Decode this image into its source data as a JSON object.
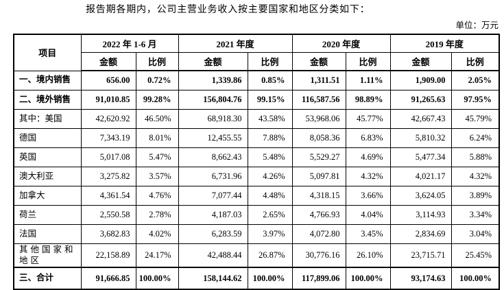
{
  "intro_text": "报告期各期内，公司主营业务收入按主要国家和地区分类如下：",
  "unit_label": "单位：万元",
  "table": {
    "item_header": "项目",
    "amount_header": "金额",
    "ratio_header": "比例",
    "periods": [
      "2022 年 1-6 月",
      "2021 年度",
      "2020 年度",
      "2019 年度"
    ],
    "rows": [
      {
        "label": "一、境内销售",
        "type": "section",
        "values": [
          "656.00",
          "0.72%",
          "1,339.86",
          "0.85%",
          "1,311.51",
          "1.11%",
          "1,909.00",
          "2.05%"
        ]
      },
      {
        "label": "二、境外销售",
        "type": "section",
        "values": [
          "91,010.85",
          "99.28%",
          "156,804.76",
          "99.15%",
          "116,587.56",
          "98.89%",
          "91,265.63",
          "97.95%"
        ]
      },
      {
        "label": "其中：美国",
        "type": "detail",
        "values": [
          "42,620.92",
          "46.50%",
          "68,918.30",
          "43.58%",
          "53,968.06",
          "45.77%",
          "42,667.43",
          "45.79%"
        ]
      },
      {
        "label": "德国",
        "type": "detail",
        "values": [
          "7,343.19",
          "8.01%",
          "12,455.55",
          "7.88%",
          "8,058.36",
          "6.83%",
          "5,810.32",
          "6.24%"
        ]
      },
      {
        "label": "英国",
        "type": "detail",
        "values": [
          "5,017.08",
          "5.47%",
          "8,662.43",
          "5.48%",
          "5,529.27",
          "4.69%",
          "5,477.34",
          "5.88%"
        ]
      },
      {
        "label": "澳大利亚",
        "type": "detail",
        "values": [
          "3,275.82",
          "3.57%",
          "6,731.96",
          "4.26%",
          "5,097.81",
          "4.32%",
          "4,021.17",
          "4.32%"
        ]
      },
      {
        "label": "加拿大",
        "type": "detail",
        "values": [
          "4,361.54",
          "4.76%",
          "7,077.44",
          "4.48%",
          "4,318.15",
          "3.66%",
          "3,624.05",
          "3.89%"
        ]
      },
      {
        "label": "荷兰",
        "type": "detail",
        "values": [
          "2,550.58",
          "2.78%",
          "4,187.03",
          "2.65%",
          "4,766.93",
          "4.04%",
          "3,114.93",
          "3.34%"
        ]
      },
      {
        "label": "法国",
        "type": "detail",
        "values": [
          "3,682.83",
          "4.02%",
          "6,283.59",
          "3.97%",
          "4,072.80",
          "3.45%",
          "2,834.69",
          "3.04%"
        ]
      },
      {
        "label": "其他国家和地区",
        "type": "detail",
        "values": [
          "22,158.89",
          "24.17%",
          "42,488.44",
          "26.87%",
          "30,776.16",
          "26.10%",
          "23,715.71",
          "25.45%"
        ]
      },
      {
        "label": "三、合计",
        "type": "total",
        "values": [
          "91,666.85",
          "100.00%",
          "158,144.62",
          "100.00%",
          "117,899.06",
          "100.00%",
          "93,174.63",
          "100.00%"
        ]
      }
    ]
  },
  "colors": {
    "number_text": "#16167a",
    "text": "#000000",
    "border": "#000000",
    "background": "#ffffff"
  }
}
